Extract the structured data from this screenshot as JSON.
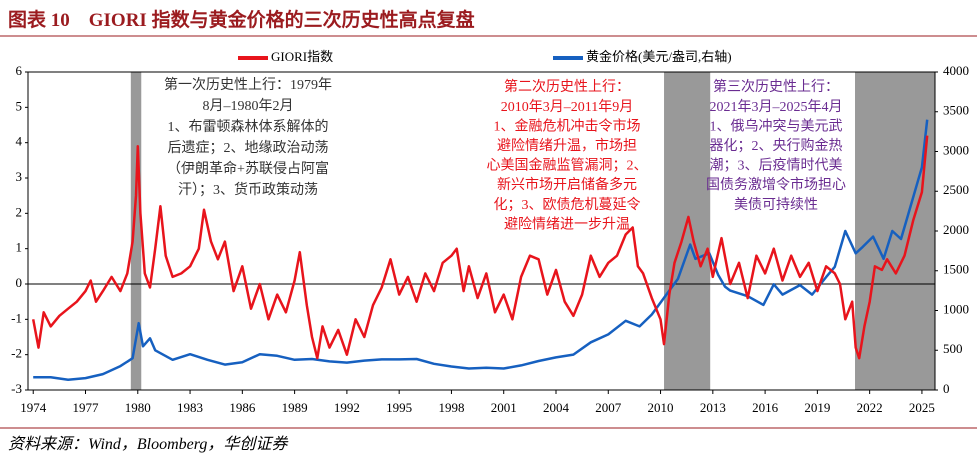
{
  "chart_data": {
    "type": "line",
    "title": "图表 10　GIORI 指数与黄金价格的三次历史性高点复盘",
    "source": "资料来源：Wind，Bloomberg，华创证券",
    "xlim": [
      1973.7,
      2025.75
    ],
    "xticks": [
      1974,
      1977,
      1980,
      1983,
      1986,
      1989,
      1992,
      1995,
      1998,
      2001,
      2004,
      2007,
      2010,
      2013,
      2016,
      2019,
      2022,
      2025
    ],
    "ylim": [
      -3,
      6
    ],
    "yticks": [
      -3,
      -2,
      -1,
      0,
      1,
      2,
      3,
      4,
      5,
      6
    ],
    "y2lim": [
      0,
      4000
    ],
    "y2ticks": [
      0,
      500,
      1000,
      1500,
      2000,
      2500,
      3000,
      3500,
      4000
    ],
    "reference_line": 0,
    "shaded_periods": [
      [
        1979.6,
        1980.2
      ],
      [
        2010.2,
        2012.85
      ],
      [
        2021.16,
        2025.75
      ]
    ],
    "shade_color": "#999999",
    "series": [
      {
        "name": "GIORI指数",
        "color": "#e8141c",
        "x": [
          1974.0,
          1974.3,
          1974.6,
          1975.0,
          1975.5,
          1976.0,
          1976.5,
          1977.0,
          1977.3,
          1977.6,
          1978.0,
          1978.5,
          1979.0,
          1979.4,
          1979.7,
          1979.9,
          1980.0,
          1980.15,
          1980.4,
          1980.7,
          1981.0,
          1981.3,
          1981.6,
          1982.0,
          1982.5,
          1983.0,
          1983.5,
          1983.8,
          1984.2,
          1984.6,
          1985.0,
          1985.5,
          1986.0,
          1986.5,
          1987.0,
          1987.5,
          1988.0,
          1988.5,
          1989.0,
          1989.3,
          1989.7,
          1990.0,
          1990.3,
          1990.6,
          1991.0,
          1991.5,
          1992.0,
          1992.5,
          1993.0,
          1993.5,
          1994.0,
          1994.5,
          1995.0,
          1995.5,
          1996.0,
          1996.5,
          1997.0,
          1997.5,
          1998.0,
          1998.3,
          1998.7,
          1999.0,
          1999.5,
          2000.0,
          2000.5,
          2001.0,
          2001.5,
          2002.0,
          2002.5,
          2003.0,
          2003.5,
          2004.0,
          2004.5,
          2005.0,
          2005.5,
          2006.0,
          2006.5,
          2007.0,
          2007.5,
          2008.0,
          2008.4,
          2008.7,
          2009.0,
          2009.5,
          2010.0,
          2010.2,
          2010.5,
          2010.8,
          2011.2,
          2011.6,
          2011.9,
          2012.3,
          2012.7,
          2013.0,
          2013.5,
          2014.0,
          2014.5,
          2015.0,
          2015.5,
          2016.0,
          2016.5,
          2017.0,
          2017.5,
          2018.0,
          2018.5,
          2019.0,
          2019.5,
          2020.0,
          2020.3,
          2020.6,
          2021.0,
          2021.2,
          2021.4,
          2021.7,
          2022.0,
          2022.3,
          2022.7,
          2023.0,
          2023.5,
          2024.0,
          2024.5,
          2025.0,
          2025.3
        ],
        "values": [
          -1.0,
          -1.8,
          -0.8,
          -1.2,
          -0.9,
          -0.7,
          -0.5,
          -0.2,
          0.1,
          -0.5,
          -0.2,
          0.2,
          -0.2,
          0.3,
          1.2,
          2.5,
          3.9,
          2.0,
          0.3,
          -0.1,
          1.0,
          2.2,
          0.8,
          0.2,
          0.3,
          0.5,
          1.0,
          2.1,
          1.2,
          0.7,
          1.2,
          -0.2,
          0.5,
          -0.7,
          0.0,
          -1.0,
          -0.3,
          -0.8,
          0.1,
          0.9,
          -0.6,
          -1.5,
          -2.1,
          -1.2,
          -1.8,
          -1.3,
          -2.0,
          -1.0,
          -1.5,
          -0.6,
          -0.1,
          0.7,
          -0.3,
          0.2,
          -0.5,
          0.3,
          -0.2,
          0.6,
          0.8,
          1.0,
          -0.2,
          0.5,
          -0.4,
          0.3,
          -0.8,
          -0.3,
          -1.0,
          0.2,
          0.8,
          0.7,
          -0.3,
          0.4,
          -0.5,
          -0.9,
          -0.3,
          0.8,
          0.2,
          0.6,
          0.8,
          1.4,
          1.6,
          0.5,
          0.3,
          -0.4,
          -1.0,
          -1.7,
          -0.3,
          0.6,
          1.2,
          1.9,
          1.2,
          0.5,
          1.0,
          0.2,
          1.3,
          0.0,
          0.6,
          -0.4,
          0.8,
          0.3,
          1.0,
          0.1,
          0.8,
          0.2,
          0.6,
          -0.2,
          0.5,
          0.3,
          0.0,
          -1.0,
          -0.5,
          -1.8,
          -2.1,
          -1.2,
          -0.5,
          0.5,
          0.4,
          0.7,
          0.3,
          0.8,
          1.8,
          2.6,
          4.2
        ]
      },
      {
        "name": "黄金价格(美元/盎司,右轴)",
        "color": "#1660c0",
        "axis": "y2",
        "x": [
          1974.0,
          1975.0,
          1976.0,
          1977.0,
          1978.0,
          1979.0,
          1979.7,
          1980.05,
          1980.3,
          1980.7,
          1981.0,
          1982.0,
          1983.0,
          1984.0,
          1985.0,
          1986.0,
          1987.0,
          1988.0,
          1989.0,
          1990.0,
          1991.0,
          1992.0,
          1993.0,
          1994.0,
          1995.0,
          1996.0,
          1997.0,
          1998.0,
          1999.0,
          2000.0,
          2001.0,
          2002.0,
          2003.0,
          2004.0,
          2005.0,
          2006.0,
          2007.0,
          2008.0,
          2008.8,
          2009.5,
          2010.0,
          2010.5,
          2011.0,
          2011.7,
          2012.0,
          2012.8,
          2013.3,
          2013.7,
          2014.0,
          2015.0,
          2015.9,
          2016.5,
          2017.0,
          2018.0,
          2018.7,
          2019.5,
          2020.0,
          2020.6,
          2021.2,
          2021.6,
          2022.2,
          2022.8,
          2023.3,
          2023.8,
          2024.2,
          2024.8,
          2025.0,
          2025.3
        ],
        "values": [
          160,
          160,
          130,
          150,
          200,
          300,
          400,
          840,
          550,
          650,
          500,
          380,
          450,
          380,
          320,
          350,
          450,
          430,
          380,
          390,
          360,
          345,
          370,
          385,
          385,
          390,
          330,
          295,
          270,
          280,
          270,
          310,
          365,
          410,
          445,
          600,
          700,
          870,
          800,
          950,
          1100,
          1250,
          1400,
          1830,
          1650,
          1720,
          1450,
          1300,
          1250,
          1180,
          1070,
          1330,
          1200,
          1320,
          1200,
          1420,
          1550,
          2000,
          1720,
          1800,
          1930,
          1650,
          2000,
          1900,
          2200,
          2650,
          2800,
          3400
        ]
      }
    ],
    "annotations": [
      {
        "color": "#333333",
        "lines": [
          "第一次历史性上行：1979年",
          "8月–1980年2月",
          "1、布雷顿森林体系解体的",
          "后遗症；2、地缘政治动荡",
          "（伊朗革命+苏联侵占阿富",
          "汗）；3、货币政策动荡"
        ]
      },
      {
        "color": "#e8141c",
        "lines": [
          "第二次历史性上行：",
          "2010年3月–2011年9月",
          "1、金融危机冲击令市场",
          "避险情绪升温，市场担",
          "心美国金融监管漏洞；2、",
          "新兴市场开启储备多元",
          "化；3、欧债危机蔓延令",
          "避险情绪进一步升温"
        ]
      },
      {
        "color": "#6a2c91",
        "lines": [
          "第三次历史性上行：",
          "2021年3月–2025年4月",
          "1、俄乌冲突与美元武",
          "器化；2、央行购金热",
          "潮；3、后疫情时代美",
          "国债务激增令市场担心",
          "美债可持续性"
        ]
      }
    ]
  }
}
